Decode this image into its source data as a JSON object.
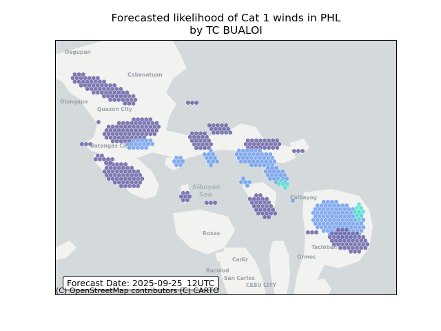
{
  "title": {
    "line1": "Forecasted likelihood of Cat 1 winds in PHL",
    "line2": "by TC BUALOI"
  },
  "forecast_date_label": "Forecast Date: 2025-09-25_12UTC",
  "attribution": "(C) OpenStreetMap contributors (C) CARTO",
  "place_labels": {
    "dagupan": "Dagupan",
    "cabanatuan": "Cabanatuan",
    "olongapo": "Olongapo",
    "quezon_city": "Quezon City",
    "batangas": "Batangas City",
    "sibuyan_sea": "Sibuyan",
    "sibuyan_sea_2": "Sea",
    "roxas": "Roxas",
    "bacolod": "Bacolod",
    "cadiz": "Cadiz",
    "san_carlos": "San Carlos",
    "cebu_city": "CEBU CITY",
    "ormoc": "Ormoc",
    "tacloban": "Tacloban",
    "calbayog": "Calbayog"
  },
  "colors": {
    "ocean": "#d4d9dc",
    "land": "#f2f2f0",
    "low_likelihood": "#6a64a6",
    "mid_likelihood": "#6f9ff0",
    "high_likelihood": "#4fe0cc"
  }
}
